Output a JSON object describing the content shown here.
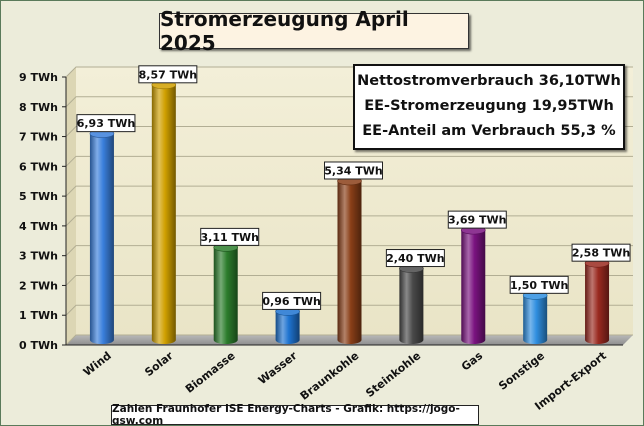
{
  "chart_data": {
    "type": "bar",
    "title": "Stromerzeugung April 2025",
    "categories": [
      "Wind",
      "Solar",
      "Biomasse",
      "Wasser",
      "Braunkohle",
      "Steinkohle",
      "Gas",
      "Sonstige",
      "Import-Export"
    ],
    "values": [
      6.93,
      8.57,
      3.11,
      0.96,
      5.34,
      2.4,
      3.69,
      1.5,
      2.58
    ],
    "value_labels": [
      "6,93 TWh",
      "8,57 TWh",
      "3,11 TWh",
      "0,96 TWh",
      "5,34 TWh",
      "2,40 TWh",
      "3,69 TWh",
      "1,50 TWh",
      "2,58 TWh"
    ],
    "yticks": [
      "0 TWh",
      "1 TWh",
      "2 TWh",
      "3 TWh",
      "4 TWh",
      "5 TWh",
      "6 TWh",
      "7 TWh",
      "8 TWh",
      "9 TWh"
    ],
    "ylim": [
      0,
      9
    ],
    "grid": true,
    "colors": [
      "#3a7fdc",
      "#d0a000",
      "#2c7d2c",
      "#1e73d0",
      "#8a3f18",
      "#4a4a4a",
      "#7a1380",
      "#2f8fe0",
      "#9a2a20"
    ],
    "info": [
      "Nettostromverbrauch 36,10TWh",
      "EE-Stromerzeugung 19,95TWh",
      "EE-Anteil am Verbrauch 55,3 %"
    ],
    "footer": "Zahlen Fraunhofer ISE  Energy-Charts - Grafik: https://jogo-gsw.com"
  }
}
